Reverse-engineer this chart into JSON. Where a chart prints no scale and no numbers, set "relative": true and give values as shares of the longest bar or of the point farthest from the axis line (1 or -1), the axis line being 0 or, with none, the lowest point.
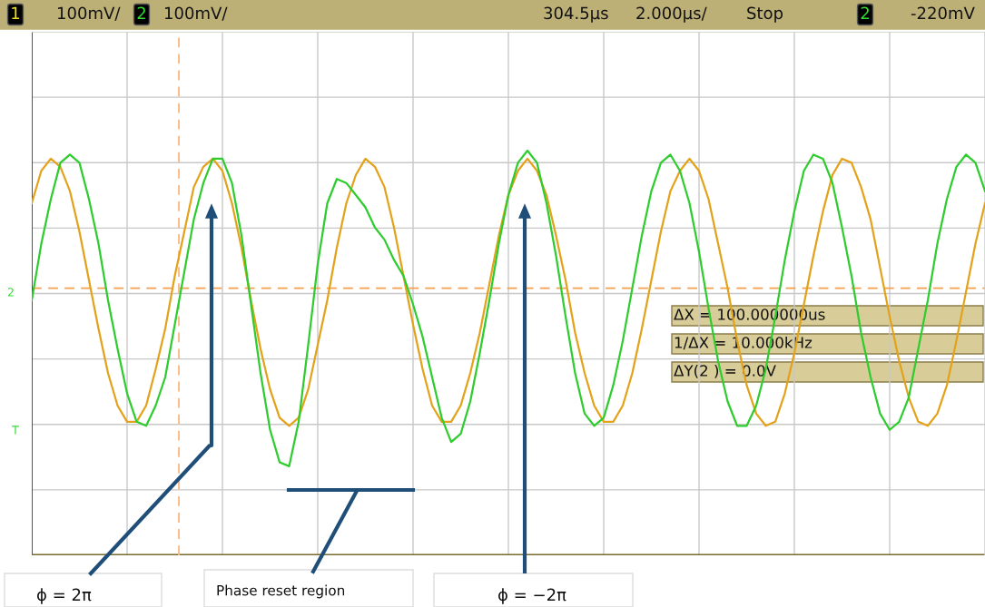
{
  "chart_data": {
    "type": "line",
    "relative": true,
    "grid": true,
    "legend": false,
    "marker": "none",
    "line_style": "solid",
    "categories": [
      null,
      null,
      null,
      null,
      null,
      null,
      null,
      null,
      null,
      null,
      null,
      null,
      null,
      null,
      null,
      null,
      null,
      null,
      null,
      null,
      null,
      null,
      null,
      null,
      null,
      null,
      null,
      null,
      null,
      null,
      null,
      null,
      null,
      null,
      null,
      null,
      null,
      null,
      null,
      null,
      null,
      null,
      null,
      null,
      null,
      null,
      null,
      null,
      null,
      null,
      null,
      null,
      null,
      null,
      null,
      null,
      null,
      null,
      null,
      null,
      null,
      null,
      null,
      null,
      null,
      null,
      null,
      null,
      null,
      null,
      null,
      null,
      null,
      null,
      null,
      null,
      null,
      null,
      null,
      null,
      null,
      null,
      null,
      null,
      null,
      null,
      null,
      null,
      null,
      null,
      null,
      null,
      null,
      null,
      null,
      null,
      null,
      null,
      null,
      null,
      null
    ],
    "series": [
      {
        "color": "#e3a21a",
        "values": [
          0.87,
          0.95,
          0.98,
          0.96,
          0.9,
          0.8,
          0.68,
          0.56,
          0.45,
          0.37,
          0.33,
          0.33,
          0.37,
          0.46,
          0.56,
          0.69,
          0.8,
          0.91,
          0.96,
          0.98,
          0.95,
          0.87,
          0.76,
          0.63,
          0.51,
          0.41,
          0.34,
          0.32,
          0.34,
          0.41,
          0.52,
          0.63,
          0.76,
          0.87,
          0.94,
          0.98,
          0.96,
          0.91,
          0.81,
          0.69,
          0.57,
          0.46,
          0.37,
          0.33,
          0.33,
          0.37,
          0.45,
          0.55,
          0.67,
          0.79,
          0.89,
          0.95,
          0.98,
          0.95,
          0.89,
          0.79,
          0.68,
          0.55,
          0.45,
          0.37,
          0.33,
          0.33,
          0.37,
          0.45,
          0.56,
          0.68,
          0.8,
          0.9,
          0.95,
          0.98,
          0.95,
          0.88,
          0.77,
          0.66,
          0.53,
          0.42,
          0.35,
          0.32,
          0.33,
          0.4,
          0.5,
          0.62,
          0.74,
          0.85,
          0.94,
          0.98,
          0.97,
          0.91,
          0.83,
          0.71,
          0.59,
          0.48,
          0.39,
          0.33,
          0.32,
          0.35,
          0.42,
          0.53,
          0.65,
          0.77,
          0.87
        ]
      },
      {
        "color": "#2ecc2e",
        "values": [
          0.63,
          0.77,
          0.88,
          0.97,
          0.99,
          0.97,
          0.88,
          0.77,
          0.63,
          0.51,
          0.4,
          0.33,
          0.32,
          0.37,
          0.44,
          0.57,
          0.7,
          0.83,
          0.92,
          0.98,
          0.98,
          0.92,
          0.79,
          0.62,
          0.45,
          0.31,
          0.23,
          0.22,
          0.33,
          0.52,
          0.72,
          0.87,
          0.93,
          0.92,
          0.89,
          0.86,
          0.81,
          0.78,
          0.73,
          0.69,
          0.62,
          0.54,
          0.44,
          0.34,
          0.28,
          0.3,
          0.38,
          0.5,
          0.63,
          0.77,
          0.89,
          0.97,
          1.0,
          0.97,
          0.87,
          0.74,
          0.59,
          0.45,
          0.35,
          0.32,
          0.34,
          0.42,
          0.53,
          0.66,
          0.79,
          0.9,
          0.97,
          0.99,
          0.95,
          0.87,
          0.75,
          0.61,
          0.48,
          0.38,
          0.32,
          0.32,
          0.37,
          0.46,
          0.59,
          0.73,
          0.85,
          0.95,
          0.99,
          0.98,
          0.92,
          0.81,
          0.69,
          0.55,
          0.44,
          0.35,
          0.31,
          0.33,
          0.39,
          0.51,
          0.63,
          0.77,
          0.88,
          0.96,
          0.99,
          0.97,
          0.9
        ]
      }
    ],
    "ref_lines": [
      {
        "axis": "y",
        "value": 0.66,
        "color": "#f5a050",
        "line_style": "dashed"
      }
    ],
    "annotations": [
      "1",
      "100mV/",
      "2",
      "100mV/",
      "304.5µs",
      "2.000µs/",
      "Stop",
      "2",
      "-220mV",
      "ΔX = 100.000000us",
      "1/ΔX = 10.000kHz",
      "ΔY(2 ) = 0.0V",
      "2",
      "T",
      "ϕ = 2π",
      "Phase reset region",
      "ϕ = −2π"
    ]
  }
}
